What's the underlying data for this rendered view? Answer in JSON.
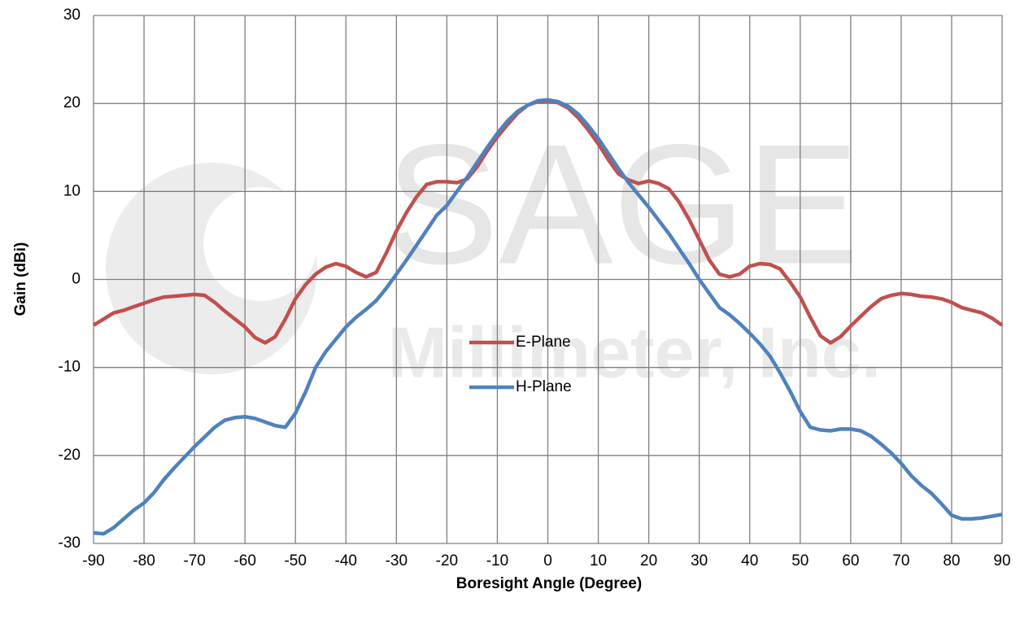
{
  "chart_data": {
    "type": "line",
    "watermark": [
      "SAGE",
      "Millimeter, Inc."
    ],
    "xlabel": "Boresight Angle (Degree)",
    "ylabel": "Gain (dBi)",
    "x": [
      -90,
      -88,
      -86,
      -84,
      -82,
      -80,
      -78,
      -76,
      -74,
      -72,
      -70,
      -68,
      -66,
      -64,
      -62,
      -60,
      -58,
      -56,
      -54,
      -52,
      -50,
      -48,
      -46,
      -44,
      -42,
      -40,
      -38,
      -36,
      -34,
      -32,
      -30,
      -28,
      -26,
      -24,
      -22,
      -20,
      -18,
      -16,
      -14,
      -12,
      -10,
      -8,
      -6,
      -4,
      -2,
      0,
      2,
      4,
      6,
      8,
      10,
      12,
      14,
      16,
      18,
      20,
      22,
      24,
      26,
      28,
      30,
      32,
      34,
      36,
      38,
      40,
      42,
      44,
      46,
      48,
      50,
      52,
      54,
      56,
      58,
      60,
      62,
      64,
      66,
      68,
      70,
      72,
      74,
      76,
      78,
      80,
      82,
      84,
      86,
      88,
      90
    ],
    "series": [
      {
        "name": "E-Plane",
        "color": "#c0504d",
        "values": [
          -5.2,
          -4.5,
          -3.8,
          -3.5,
          -3.1,
          -2.7,
          -2.3,
          -2.0,
          -1.9,
          -1.8,
          -1.7,
          -1.8,
          -2.6,
          -3.6,
          -4.5,
          -5.4,
          -6.6,
          -7.2,
          -6.5,
          -4.5,
          -2.2,
          -0.6,
          0.6,
          1.4,
          1.8,
          1.5,
          0.8,
          0.3,
          0.8,
          3.0,
          5.5,
          7.6,
          9.4,
          10.8,
          11.1,
          11.1,
          11.0,
          11.4,
          12.8,
          14.6,
          16.2,
          17.6,
          18.9,
          19.8,
          20.2,
          20.3,
          20.1,
          19.5,
          18.4,
          17.0,
          15.4,
          13.6,
          12.0,
          11.3,
          10.9,
          11.2,
          10.9,
          10.3,
          8.8,
          6.8,
          4.5,
          2.2,
          0.6,
          0.3,
          0.6,
          1.5,
          1.8,
          1.7,
          1.2,
          -0.3,
          -2.0,
          -4.3,
          -6.4,
          -7.2,
          -6.5,
          -5.3,
          -4.2,
          -3.1,
          -2.2,
          -1.8,
          -1.6,
          -1.7,
          -1.9,
          -2.0,
          -2.2,
          -2.6,
          -3.2,
          -3.5,
          -3.8,
          -4.4,
          -5.2
        ]
      },
      {
        "name": "H-Plane",
        "color": "#4f81bd",
        "values": [
          -28.8,
          -28.9,
          -28.2,
          -27.2,
          -26.2,
          -25.4,
          -24.2,
          -22.7,
          -21.4,
          -20.2,
          -19.0,
          -17.9,
          -16.8,
          -16.0,
          -15.7,
          -15.6,
          -15.8,
          -16.2,
          -16.6,
          -16.8,
          -15.2,
          -12.8,
          -10.0,
          -8.2,
          -6.8,
          -5.4,
          -4.3,
          -3.4,
          -2.4,
          -1.0,
          0.6,
          2.2,
          3.9,
          5.6,
          7.3,
          8.4,
          10.0,
          11.6,
          13.3,
          15.0,
          16.6,
          18.0,
          19.1,
          19.8,
          20.3,
          20.4,
          20.2,
          19.7,
          18.8,
          17.5,
          16.0,
          14.3,
          12.6,
          11.0,
          9.6,
          8.2,
          6.7,
          5.2,
          3.5,
          1.8,
          0.0,
          -1.6,
          -3.2,
          -4.0,
          -5.0,
          -6.1,
          -7.3,
          -8.7,
          -10.6,
          -12.7,
          -15.0,
          -16.8,
          -17.1,
          -17.2,
          -17.0,
          -17.0,
          -17.2,
          -17.8,
          -18.7,
          -19.7,
          -20.9,
          -22.3,
          -23.4,
          -24.3,
          -25.5,
          -26.8,
          -27.2,
          -27.2,
          -27.1,
          -26.9,
          -26.7
        ]
      }
    ],
    "xlim": [
      -90,
      90
    ],
    "xticks": [
      -90,
      -80,
      -70,
      -60,
      -50,
      -40,
      -30,
      -20,
      -10,
      0,
      10,
      20,
      30,
      40,
      50,
      60,
      70,
      80,
      90
    ],
    "ylim": [
      -30,
      30
    ],
    "yticks": [
      -30,
      -20,
      -10,
      0,
      10,
      20,
      30
    ],
    "grid": true,
    "legend": "center"
  }
}
